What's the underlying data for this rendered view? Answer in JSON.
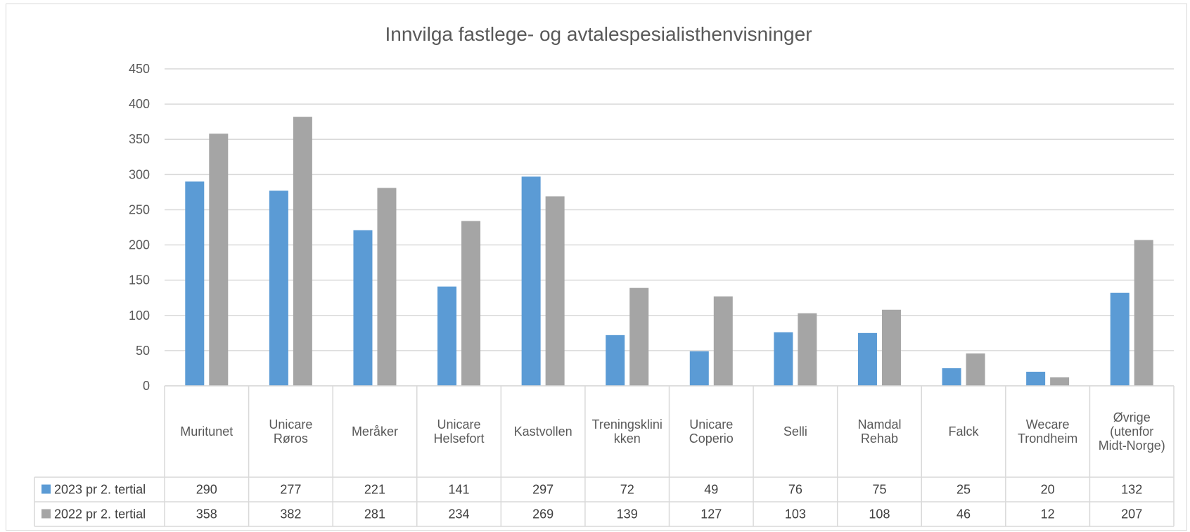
{
  "chart_data": {
    "type": "bar",
    "title": "Innvilga fastlege- og avtalespesialisthenvisninger",
    "categories": [
      [
        "Muritunet"
      ],
      [
        "Unicare",
        "Røros"
      ],
      [
        "Meråker"
      ],
      [
        "Unicare",
        "Helsefort"
      ],
      [
        "Kastvollen"
      ],
      [
        "Treningsklini",
        "kken"
      ],
      [
        "Unicare",
        "Coperio"
      ],
      [
        "Selli"
      ],
      [
        "Namdal",
        "Rehab"
      ],
      [
        "Falck"
      ],
      [
        "Wecare",
        "Trondheim"
      ],
      [
        "Øvrige",
        "(utenfor",
        "Midt-Norge)"
      ]
    ],
    "series": [
      {
        "name": "2023 pr 2. tertial",
        "color": "#5b9bd5",
        "values": [
          290,
          277,
          221,
          141,
          297,
          72,
          49,
          76,
          75,
          25,
          20,
          132
        ]
      },
      {
        "name": "2022 pr 2. tertial",
        "color": "#a5a5a5",
        "values": [
          358,
          382,
          281,
          234,
          269,
          139,
          127,
          103,
          108,
          46,
          12,
          207
        ]
      }
    ],
    "ylim": [
      0,
      450
    ],
    "yticks": [
      0,
      50,
      100,
      150,
      200,
      250,
      300,
      350,
      400,
      450
    ],
    "grid": true,
    "legend": "data-table",
    "xlabel": "",
    "ylabel": ""
  }
}
